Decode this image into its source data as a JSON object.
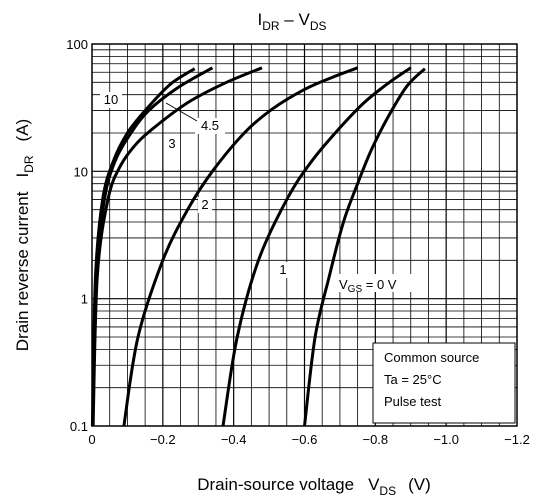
{
  "chart_data": {
    "type": "line",
    "title": {
      "main": "I",
      "main_sub": "DR",
      "sep": " – V",
      "tail_sub": "DS"
    },
    "xlabel": {
      "main": "Drain-source voltage",
      "sym": "V",
      "sym_sub": "DS",
      "unit": "(V)"
    },
    "ylabel": {
      "main": "Drain reverse current",
      "sym": "I",
      "sym_sub": "DR",
      "unit": "(A)"
    },
    "x_scale": "linear",
    "y_scale": "log",
    "xlim": [
      0,
      -1.2
    ],
    "ylim": [
      0.1,
      100
    ],
    "x_ticks": [
      0,
      -0.2,
      -0.4,
      -0.6,
      -0.8,
      -1.0,
      -1.2
    ],
    "x_tick_labels": [
      "0",
      "−0.2",
      "−0.4",
      "−0.6",
      "−0.8",
      "−1.0",
      "−1.2"
    ],
    "y_ticks": [
      0.1,
      1,
      10,
      100
    ],
    "y_tick_labels": [
      "0.1",
      "1",
      "10",
      "100"
    ],
    "grid": true,
    "annotation": {
      "lines": [
        "Common source",
        "Ta = 25°C",
        "Pulse test"
      ],
      "placement": "bottom-right"
    },
    "vgs_label": {
      "sym": "V",
      "sym_sub": "GS",
      "text": " = 0 V"
    },
    "series": [
      {
        "name": "10",
        "points": [
          [
            -0.001,
            0.1
          ],
          [
            -0.01,
            1.5
          ],
          [
            -0.03,
            6
          ],
          [
            -0.06,
            12
          ],
          [
            -0.1,
            20
          ],
          [
            -0.15,
            30
          ],
          [
            -0.22,
            48
          ],
          [
            -0.29,
            64
          ]
        ]
      },
      {
        "name": "4.5",
        "points": [
          [
            -0.002,
            0.1
          ],
          [
            -0.012,
            1.5
          ],
          [
            -0.035,
            6
          ],
          [
            -0.065,
            12
          ],
          [
            -0.11,
            20
          ],
          [
            -0.16,
            30
          ],
          [
            -0.24,
            45
          ],
          [
            -0.34,
            65
          ]
        ]
      },
      {
        "name": "3",
        "points": [
          [
            -0.003,
            0.1
          ],
          [
            -0.015,
            1.5
          ],
          [
            -0.045,
            6
          ],
          [
            -0.08,
            11
          ],
          [
            -0.13,
            17
          ],
          [
            -0.2,
            25
          ],
          [
            -0.28,
            36
          ],
          [
            -0.38,
            50
          ],
          [
            -0.48,
            65
          ]
        ]
      },
      {
        "name": "2",
        "points": [
          [
            -0.09,
            0.1
          ],
          [
            -0.13,
            0.5
          ],
          [
            -0.2,
            2
          ],
          [
            -0.27,
            5
          ],
          [
            -0.34,
            10
          ],
          [
            -0.43,
            20
          ],
          [
            -0.51,
            31
          ],
          [
            -0.6,
            44
          ],
          [
            -0.68,
            55
          ],
          [
            -0.75,
            65
          ]
        ]
      },
      {
        "name": "1",
        "points": [
          [
            -0.37,
            0.1
          ],
          [
            -0.41,
            0.5
          ],
          [
            -0.47,
            2
          ],
          [
            -0.55,
            6
          ],
          [
            -0.62,
            12
          ],
          [
            -0.7,
            22
          ],
          [
            -0.77,
            35
          ],
          [
            -0.84,
            50
          ],
          [
            -0.9,
            65
          ]
        ]
      },
      {
        "name": "0",
        "points": [
          [
            -0.6,
            0.1
          ],
          [
            -0.63,
            0.5
          ],
          [
            -0.67,
            1.5
          ],
          [
            -0.71,
            4
          ],
          [
            -0.75,
            8
          ],
          [
            -0.79,
            15
          ],
          [
            -0.84,
            28
          ],
          [
            -0.89,
            47
          ],
          [
            -0.94,
            64
          ]
        ]
      }
    ]
  }
}
